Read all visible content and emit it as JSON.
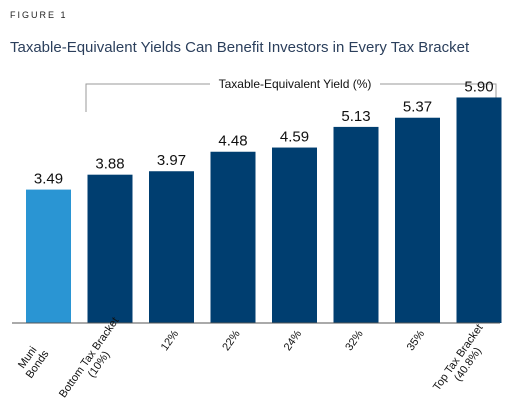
{
  "figure_label": "FIGURE 1",
  "colors": {
    "highlight": "#2a95d3",
    "primary": "#003e70",
    "axis": "#555555",
    "title": "#2b3f5c"
  },
  "chart_data": {
    "type": "bar",
    "title": "Taxable-Equivalent Yields Can Benefit Investors in Every Tax Bracket",
    "bracket_label": "Taxable-Equivalent Yield (%)",
    "xlabel": "",
    "ylabel": "",
    "ylim": [
      0,
      6.2
    ],
    "grid": false,
    "categories": [
      [
        "Muni",
        "Bonds"
      ],
      [
        "Bottom Tax Bracket",
        "(10%)"
      ],
      [
        "12%"
      ],
      [
        "22%"
      ],
      [
        "24%"
      ],
      [
        "32%"
      ],
      [
        "35%"
      ],
      [
        "Top Tax Bracket",
        "(40.8%)"
      ]
    ],
    "values": [
      3.49,
      3.88,
      3.97,
      4.48,
      4.59,
      5.13,
      5.37,
      5.9
    ],
    "value_labels": [
      "3.49",
      "3.88",
      "3.97",
      "4.48",
      "4.59",
      "5.13",
      "5.37",
      "5.90"
    ],
    "highlight_index": 0
  }
}
